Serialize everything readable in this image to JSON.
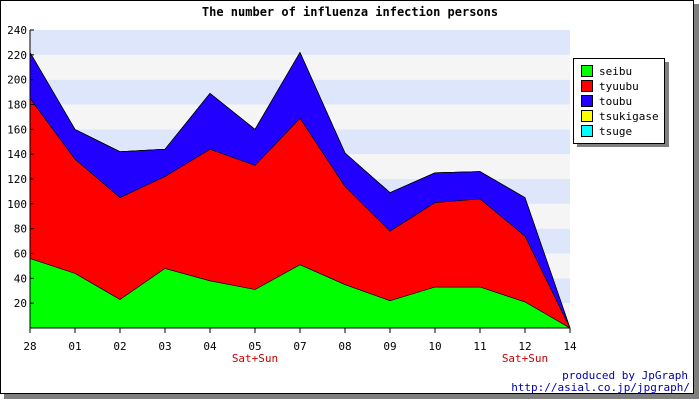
{
  "chart_data": {
    "type": "area",
    "stacked": true,
    "title": "The number of influenza infection persons",
    "xlabel": "",
    "ylabel": "",
    "categories": [
      "28",
      "01",
      "02",
      "03",
      "04",
      "05",
      "07",
      "08",
      "09",
      "10",
      "11",
      "12",
      "14"
    ],
    "sublabels": [
      "",
      "",
      "",
      "",
      "",
      "Sat+Sun",
      "",
      "",
      "",
      "",
      "",
      "Sat+Sun",
      ""
    ],
    "ylim": [
      0,
      240
    ],
    "yticks": [
      20,
      40,
      60,
      80,
      100,
      120,
      140,
      160,
      180,
      200,
      220,
      240
    ],
    "grid": true,
    "legend_position": "right",
    "series": [
      {
        "name": "seibu",
        "color": "#00ff00",
        "values": [
          56,
          44,
          23,
          48,
          38,
          31,
          51,
          35,
          22,
          33,
          33,
          21,
          0
        ]
      },
      {
        "name": "tyuubu",
        "color": "#ff0000",
        "values": [
          129,
          92,
          82,
          74,
          106,
          100,
          118,
          79,
          56,
          68,
          71,
          53,
          0
        ]
      },
      {
        "name": "toubu",
        "color": "#2200ff",
        "values": [
          37,
          24,
          37,
          22,
          45,
          29,
          53,
          27,
          31,
          24,
          22,
          31,
          0
        ]
      },
      {
        "name": "tsukigase",
        "color": "#ffff00",
        "values": [
          0,
          0,
          0,
          0,
          0,
          0,
          0,
          0,
          0,
          0,
          0,
          0,
          0
        ]
      },
      {
        "name": "tsuge",
        "color": "#00ffff",
        "values": [
          0,
          0,
          0,
          0,
          0,
          0,
          0,
          0,
          0,
          0,
          0,
          0,
          0
        ]
      }
    ]
  },
  "credits": {
    "line1": "produced by JpGraph",
    "line2": "http://asial.co.jp/jpgraph/"
  }
}
